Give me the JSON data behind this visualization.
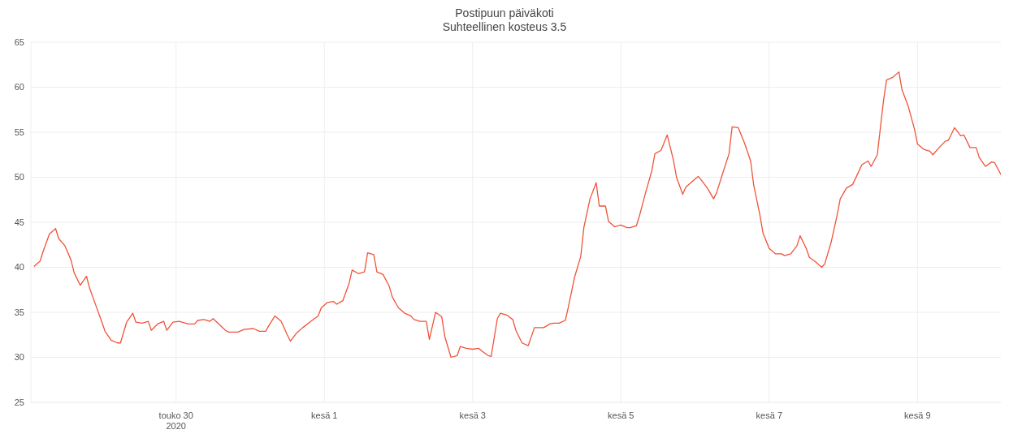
{
  "chart_data": {
    "type": "line",
    "title": "Postipuun päiväkoti",
    "subtitle": "Suhteellinen kosteus 3.5",
    "x": [
      "2020-05-28T02:00",
      "2020-05-28T04:00",
      "2020-05-28T05:00",
      "2020-05-28T07:00",
      "2020-05-28T09:00",
      "2020-05-28T10:00",
      "2020-05-28T12:00",
      "2020-05-28T14:00",
      "2020-05-28T15:00",
      "2020-05-28T17:00",
      "2020-05-28T19:00",
      "2020-05-28T20:00",
      "2020-05-28T22:00",
      "2020-05-29T00:00",
      "2020-05-29T01:00",
      "2020-05-29T03:00",
      "2020-05-29T05:00",
      "2020-05-29T06:00",
      "2020-05-29T08:00",
      "2020-05-29T10:00",
      "2020-05-29T11:00",
      "2020-05-29T13:00",
      "2020-05-29T15:00",
      "2020-05-29T16:00",
      "2020-05-29T18:00",
      "2020-05-29T20:00",
      "2020-05-29T21:00",
      "2020-05-29T23:00",
      "2020-05-30T01:00",
      "2020-05-30T04:00",
      "2020-05-30T06:00",
      "2020-05-30T07:00",
      "2020-05-30T09:00",
      "2020-05-30T11:00",
      "2020-05-30T12:00",
      "2020-05-30T16:00",
      "2020-05-30T17:00",
      "2020-05-30T20:00",
      "2020-05-30T22:00",
      "2020-05-31T01:00",
      "2020-05-31T03:00",
      "2020-05-31T05:00",
      "2020-05-31T06:00",
      "2020-05-31T08:00",
      "2020-05-31T10:00",
      "2020-05-31T12:00",
      "2020-05-31T13:00",
      "2020-05-31T15:00",
      "2020-05-31T17:00",
      "2020-05-31T20:00",
      "2020-05-31T22:00",
      "2020-05-31T23:00",
      "2020-06-01T01:00",
      "2020-06-01T03:00",
      "2020-06-01T04:00",
      "2020-06-01T06:00",
      "2020-06-01T08:00",
      "2020-06-01T09:00",
      "2020-06-01T11:00",
      "2020-06-01T13:00",
      "2020-06-01T14:00",
      "2020-06-01T16:00",
      "2020-06-01T17:00",
      "2020-06-01T19:00",
      "2020-06-01T21:00",
      "2020-06-01T22:00",
      "2020-06-02T00:00",
      "2020-06-02T02:00",
      "2020-06-02T04:00",
      "2020-06-02T05:00",
      "2020-06-02T07:00",
      "2020-06-02T09:00",
      "2020-06-02T10:00",
      "2020-06-02T12:00",
      "2020-06-02T14:00",
      "2020-06-02T15:00",
      "2020-06-02T17:00",
      "2020-06-02T19:00",
      "2020-06-02T20:00",
      "2020-06-02T22:00",
      "2020-06-03T00:00",
      "2020-06-03T02:00",
      "2020-06-03T03:00",
      "2020-06-03T05:00",
      "2020-06-03T06:00",
      "2020-06-03T08:00",
      "2020-06-03T09:00",
      "2020-06-03T11:00",
      "2020-06-03T13:00",
      "2020-06-03T14:00",
      "2020-06-03T16:00",
      "2020-06-03T18:00",
      "2020-06-03T20:00",
      "2020-06-03T21:00",
      "2020-06-03T23:00",
      "2020-06-04T01:00",
      "2020-06-04T02:00",
      "2020-06-04T04:00",
      "2020-06-04T06:00",
      "2020-06-04T07:00",
      "2020-06-04T09:00",
      "2020-06-04T11:00",
      "2020-06-04T12:00",
      "2020-06-04T14:00",
      "2020-06-04T16:00",
      "2020-06-04T17:00",
      "2020-06-04T19:00",
      "2020-06-04T20:00",
      "2020-06-04T22:00",
      "2020-06-05T00:00",
      "2020-06-05T02:00",
      "2020-06-05T03:00",
      "2020-06-05T05:00",
      "2020-06-05T06:00",
      "2020-06-05T08:00",
      "2020-06-05T10:00",
      "2020-06-05T11:00",
      "2020-06-05T13:00",
      "2020-06-05T15:00",
      "2020-06-05T17:00",
      "2020-06-05T18:00",
      "2020-06-05T20:00",
      "2020-06-05T21:00",
      "2020-06-05T23:00",
      "2020-06-06T01:00",
      "2020-06-06T02:00",
      "2020-06-06T04:00",
      "2020-06-06T06:00",
      "2020-06-06T07:00",
      "2020-06-06T09:00",
      "2020-06-06T11:00",
      "2020-06-06T12:00",
      "2020-06-06T14:00",
      "2020-06-06T16:00",
      "2020-06-06T18:00",
      "2020-06-06T19:00",
      "2020-06-06T21:00",
      "2020-06-06T22:00",
      "2020-06-07T00:00",
      "2020-06-07T02:00",
      "2020-06-07T04:00",
      "2020-06-07T05:00",
      "2020-06-07T07:00",
      "2020-06-07T09:00",
      "2020-06-07T10:00",
      "2020-06-07T12:00",
      "2020-06-07T13:00",
      "2020-06-07T15:00",
      "2020-06-07T17:00",
      "2020-06-07T18:00",
      "2020-06-07T20:00",
      "2020-06-07T22:00",
      "2020-06-07T23:00",
      "2020-06-08T01:00",
      "2020-06-08T03:00",
      "2020-06-08T04:00",
      "2020-06-08T06:00",
      "2020-06-08T08:00",
      "2020-06-08T09:00",
      "2020-06-08T11:00",
      "2020-06-08T13:00",
      "2020-06-08T14:00",
      "2020-06-08T16:00",
      "2020-06-08T18:00",
      "2020-06-08T19:00",
      "2020-06-08T21:00",
      "2020-06-08T23:00",
      "2020-06-09T00:00",
      "2020-06-09T02:00",
      "2020-06-09T04:00",
      "2020-06-09T05:00",
      "2020-06-09T07:00",
      "2020-06-09T09:00",
      "2020-06-09T10:00",
      "2020-06-09T12:00",
      "2020-06-09T14:00",
      "2020-06-09T15:00",
      "2020-06-09T17:00",
      "2020-06-09T19:00",
      "2020-06-09T20:00",
      "2020-06-09T22:00",
      "2020-06-10T00:00",
      "2020-06-10T01:00",
      "2020-06-10T03:00"
    ],
    "series": [
      {
        "color": "#f0533a",
        "values": [
          40.1,
          40.7,
          41.8,
          43.7,
          44.3,
          43.2,
          42.4,
          40.8,
          39.4,
          38.0,
          39.0,
          37.7,
          35.8,
          33.9,
          32.9,
          31.9,
          31.6,
          31.6,
          33.9,
          34.9,
          33.9,
          33.8,
          34.0,
          33.0,
          33.7,
          34.0,
          33.0,
          33.9,
          34.0,
          33.7,
          33.7,
          34.1,
          34.2,
          34.0,
          34.3,
          33.0,
          32.8,
          32.8,
          33.1,
          33.2,
          32.9,
          32.9,
          33.5,
          34.6,
          34.0,
          32.5,
          31.8,
          32.7,
          33.3,
          34.1,
          34.6,
          35.5,
          36.1,
          36.2,
          35.9,
          36.3,
          38.2,
          39.7,
          39.3,
          39.5,
          41.6,
          41.4,
          39.5,
          39.2,
          37.9,
          36.7,
          35.5,
          34.9,
          34.6,
          34.2,
          34.0,
          34.0,
          32.0,
          35.0,
          34.5,
          32.3,
          30.0,
          30.2,
          31.2,
          31.0,
          30.9,
          31.0,
          30.7,
          30.2,
          30.1,
          34.3,
          34.9,
          34.7,
          34.2,
          33.0,
          31.6,
          31.3,
          33.3,
          33.3,
          33.3,
          33.7,
          33.8,
          33.8,
          34.1,
          35.6,
          38.9,
          41.2,
          44.4,
          47.6,
          49.4,
          46.8,
          46.8,
          45.1,
          44.5,
          44.7,
          44.4,
          44.4,
          44.6,
          45.7,
          48.3,
          50.7,
          52.6,
          53.0,
          54.7,
          51.9,
          50.0,
          48.1,
          48.9,
          49.5,
          50.1,
          49.7,
          48.8,
          47.6,
          48.3,
          50.5,
          52.6,
          55.6,
          55.5,
          53.8,
          51.8,
          49.1,
          45.8,
          43.8,
          42.1,
          41.5,
          41.5,
          41.3,
          41.5,
          42.4,
          43.5,
          42.1,
          41.1,
          40.6,
          40.0,
          40.4,
          42.7,
          45.8,
          47.6,
          48.8,
          49.2,
          49.9,
          51.4,
          51.8,
          51.2,
          52.5,
          58.5,
          60.8,
          61.1,
          61.7,
          59.7,
          57.9,
          55.4,
          53.7,
          53.1,
          52.9,
          52.5,
          53.3,
          54.0,
          54.1,
          55.5,
          54.6,
          54.7,
          53.3,
          53.3,
          52.2,
          51.2,
          51.7,
          51.6,
          50.3
        ]
      }
    ],
    "xlim": [
      "2020-05-28T01:00",
      "2020-06-10T03:00"
    ],
    "xticks": [
      {
        "value": "2020-05-30",
        "label": "touko 30\n2020"
      },
      {
        "value": "2020-06-01",
        "label": "kesä 1"
      },
      {
        "value": "2020-06-03",
        "label": "kesä 3"
      },
      {
        "value": "2020-06-05",
        "label": "kesä 5"
      },
      {
        "value": "2020-06-07",
        "label": "kesä 7"
      },
      {
        "value": "2020-06-09",
        "label": "kesä 9"
      }
    ],
    "ylim": [
      25,
      65
    ],
    "yticks": [
      25,
      30,
      35,
      40,
      45,
      50,
      55,
      60,
      65
    ],
    "grid": true,
    "marker": "none",
    "line_style": "solid"
  }
}
